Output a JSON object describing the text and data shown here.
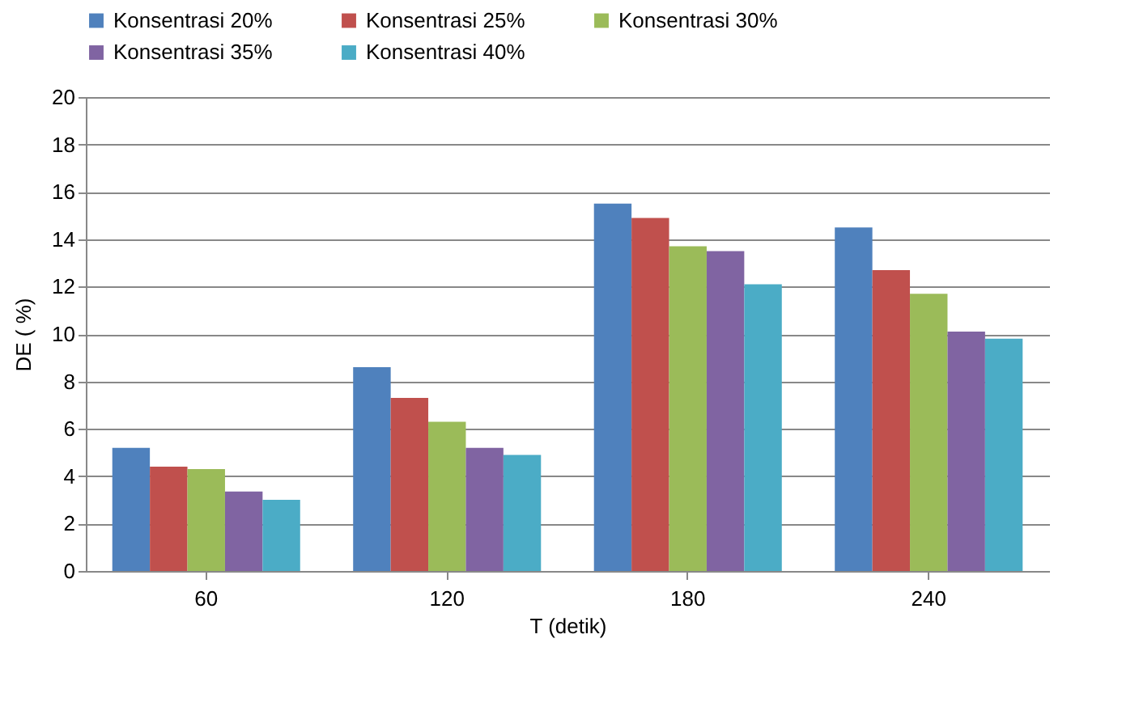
{
  "chart_data": {
    "type": "bar",
    "xlabel": "T (detik)",
    "ylabel": "DE ( %)",
    "categories": [
      "60",
      "120",
      "180",
      "240"
    ],
    "series": [
      {
        "name": "Konsentrasi 20%",
        "color": "#4f81bd",
        "values": [
          5.2,
          8.6,
          15.5,
          14.5
        ]
      },
      {
        "name": "Konsentrasi 25%",
        "color": "#c0504d",
        "values": [
          4.4,
          7.3,
          14.9,
          12.7
        ]
      },
      {
        "name": "Konsentrasi 30%",
        "color": "#9bbb59",
        "values": [
          4.3,
          6.3,
          13.7,
          11.7
        ]
      },
      {
        "name": "Konsentrasi 35%",
        "color": "#8064a2",
        "values": [
          3.35,
          5.2,
          13.5,
          10.1
        ]
      },
      {
        "name": "Konsentrasi 40%",
        "color": "#4bacc6",
        "values": [
          3.0,
          4.9,
          12.1,
          9.8
        ]
      }
    ],
    "ylim": [
      0,
      20
    ],
    "yticks": [
      0,
      2,
      4,
      6,
      8,
      10,
      12,
      14,
      16,
      18,
      20
    ],
    "grid": "y",
    "legend": "top"
  }
}
